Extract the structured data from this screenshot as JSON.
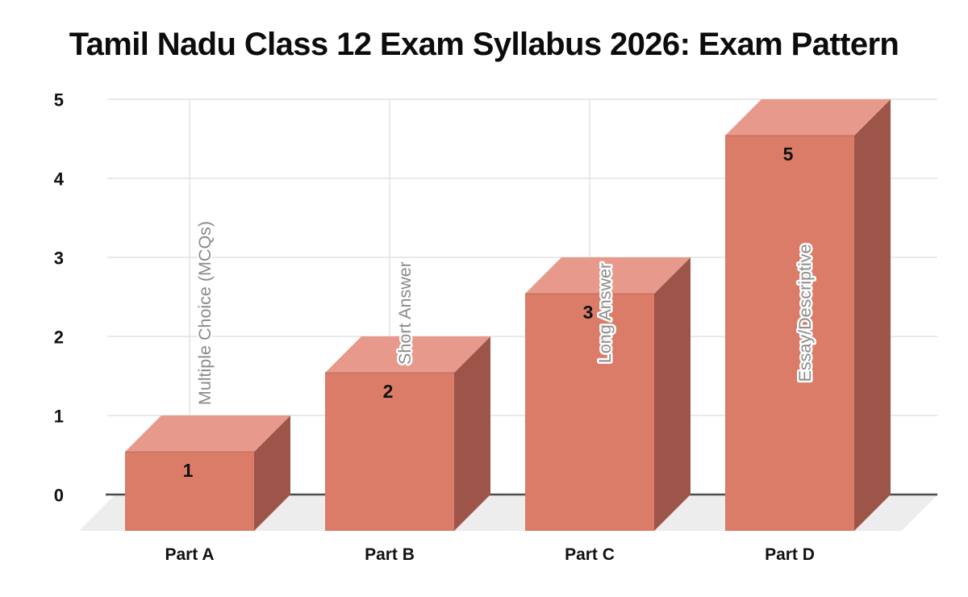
{
  "page": {
    "background": "#ffffff"
  },
  "chart_data": {
    "type": "bar",
    "style": "3d-column",
    "title": "Tamil Nadu Class 12 Exam Syllabus 2026: Exam Pattern",
    "categories": [
      "Part A",
      "Part B",
      "Part C",
      "Part D"
    ],
    "values": [
      1,
      2,
      3,
      5
    ],
    "value_labels": [
      "1",
      "2",
      "3",
      "5"
    ],
    "point_labels": [
      "Multiple Choice (MCQs)",
      "Short Answer",
      "Long Answer",
      "Essay/Descriptive"
    ],
    "y_tick_labels": [
      "0",
      "1",
      "2",
      "3",
      "4",
      "5"
    ],
    "ylim": [
      0,
      5
    ],
    "xlabel": "",
    "ylabel": "",
    "grid": true,
    "legend_position": "none",
    "colors": {
      "bar_front": "#db7c68",
      "bar_top": "#e79a8c",
      "bar_side": "#9d5549",
      "bar_edge": "rgba(120,45,32,0.35)",
      "grid_h": "#e2e2e2",
      "grid_v": "#e4e4e4",
      "axis_line": "#4d4d4d",
      "floor": "#ededed",
      "value_label": "#111111",
      "point_label": "#8a8a8a",
      "point_label_halo": "#ffffff",
      "tick_label": "#111111",
      "title_color": "#0c0c0c"
    }
  }
}
